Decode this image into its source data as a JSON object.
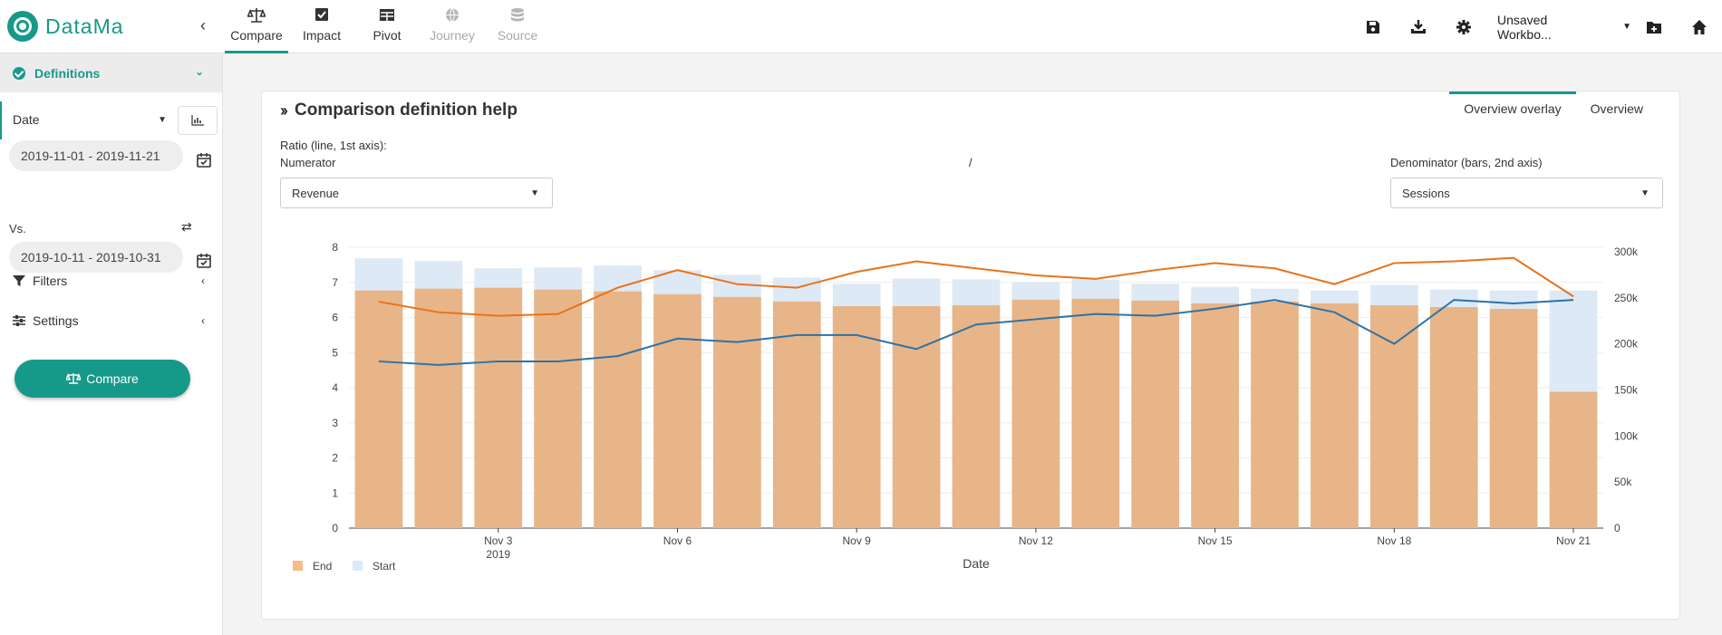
{
  "app": {
    "name": "DataMa"
  },
  "nav": {
    "tabs": [
      {
        "label": "Compare",
        "icon": "scale-icon",
        "active": true,
        "disabled": false
      },
      {
        "label": "Impact",
        "icon": "check-square-icon",
        "active": false,
        "disabled": false
      },
      {
        "label": "Pivot",
        "icon": "table-icon",
        "active": false,
        "disabled": false
      },
      {
        "label": "Journey",
        "icon": "globe-icon",
        "active": false,
        "disabled": true
      },
      {
        "label": "Source",
        "icon": "database-icon",
        "active": false,
        "disabled": true
      }
    ]
  },
  "toolbar": {
    "workbook": "Unsaved Workbo...",
    "icons": [
      "save-icon",
      "download-icon",
      "gear-icon",
      "folder-plus-icon",
      "home-icon"
    ]
  },
  "sidebar": {
    "definitions_label": "Definitions",
    "date_label": "Date",
    "date_range": "2019-11-01 - 2019-11-21",
    "vs_label": "Vs.",
    "vs_range": "2019-10-11 - 2019-10-31",
    "filters_label": "Filters",
    "settings_label": "Settings",
    "compare_button": "Compare"
  },
  "card": {
    "title": "Comparison definition help",
    "tabs": [
      "Overview overlay",
      "Overview"
    ],
    "active_tab": 0,
    "ratio_label": "Ratio (line, 1st axis):",
    "numerator_label": "Numerator",
    "slash": "/",
    "denominator_label": "Denominator (bars, 2nd axis)",
    "numerator_value": "Revenue",
    "denominator_value": "Sessions"
  },
  "chart_data": {
    "type": "bar",
    "xlabel": "Date",
    "x_ticks": [
      {
        "label": "Nov 3",
        "sub": "2019",
        "day": 3
      },
      {
        "label": "Nov 6",
        "sub": "",
        "day": 6
      },
      {
        "label": "Nov 9",
        "sub": "",
        "day": 9
      },
      {
        "label": "Nov 12",
        "sub": "",
        "day": 12
      },
      {
        "label": "Nov 15",
        "sub": "",
        "day": 15
      },
      {
        "label": "Nov 18",
        "sub": "",
        "day": 18
      },
      {
        "label": "Nov 21",
        "sub": "",
        "day": 21
      }
    ],
    "days": [
      1,
      2,
      3,
      4,
      5,
      6,
      7,
      8,
      9,
      10,
      11,
      12,
      13,
      14,
      15,
      16,
      17,
      18,
      19,
      20,
      21
    ],
    "y_left": {
      "min": 0,
      "max": 8,
      "ticks": [
        "0",
        "1",
        "2",
        "3",
        "4",
        "5",
        "6",
        "7",
        "8"
      ]
    },
    "y_right": {
      "min": 0,
      "max": 300000,
      "ticks": [
        "0",
        "50k",
        "100k",
        "150k",
        "200k",
        "250k",
        "300k"
      ]
    },
    "legend": [
      {
        "name": "End",
        "color": "#f9bb84"
      },
      {
        "name": "Start",
        "color": "#dde9f5"
      }
    ],
    "bars_end": [
      258000,
      260000,
      261000,
      259000,
      257000,
      254000,
      251000,
      246000,
      241000,
      241000,
      242000,
      248000,
      249000,
      247000,
      244000,
      246000,
      244000,
      242000,
      240000,
      238000,
      148000
    ],
    "bars_start": [
      293000,
      290000,
      282000,
      283000,
      285000,
      280000,
      275000,
      272000,
      265000,
      271000,
      270000,
      267000,
      270000,
      265000,
      262000,
      260000,
      258000,
      264000,
      259000,
      258000,
      258000
    ],
    "lines": [
      {
        "color": "#e8731a",
        "values": [
          6.45,
          6.15,
          6.05,
          6.1,
          6.85,
          7.35,
          6.95,
          6.85,
          7.3,
          7.6,
          7.4,
          7.2,
          7.1,
          7.35,
          7.55,
          7.4,
          6.95,
          7.55,
          7.6,
          7.7,
          6.6
        ]
      },
      {
        "color": "#2e72a6",
        "values": [
          4.75,
          4.65,
          4.75,
          4.75,
          4.9,
          5.4,
          5.3,
          5.5,
          5.5,
          5.1,
          5.8,
          5.95,
          6.1,
          6.05,
          6.25,
          6.5,
          6.15,
          5.25,
          6.5,
          6.4,
          6.5
        ]
      }
    ]
  }
}
